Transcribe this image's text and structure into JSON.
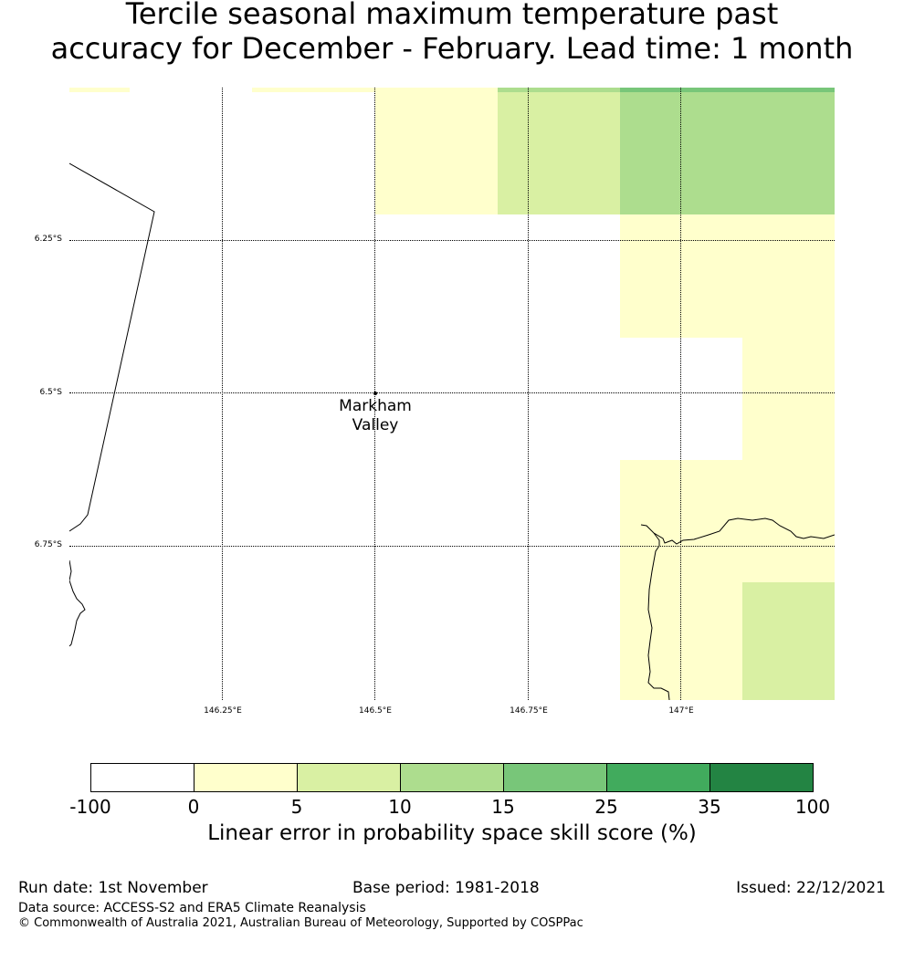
{
  "title_line1": "Tercile seasonal maximum temperature past",
  "title_line2": "accuracy for December - February. Lead time: 1 month",
  "map": {
    "lat_labels": [
      "6.25°S",
      "6.5°S",
      "6.75°S"
    ],
    "lon_labels": [
      "146.25°E",
      "146.5°E",
      "146.75°E",
      "147°E"
    ],
    "place": {
      "name_line1": "Markham",
      "name_line2": "Valley"
    }
  },
  "colorbar": {
    "colors": [
      "#ffffff",
      "#ffffcc",
      "#d9f0a3",
      "#addd8e",
      "#78c679",
      "#41ab5d",
      "#238443"
    ],
    "ticks": [
      "-100",
      "0",
      "5",
      "10",
      "15",
      "25",
      "35",
      "100"
    ],
    "label": "Linear error in probability space skill score (%)"
  },
  "footer": {
    "run_date": "Run date: 1st November",
    "base_period": "Base period: 1981-2018",
    "issued": "Issued: 22/12/2021",
    "data_source": "Data source: ACCESS-S2 and ERA5 Climate Reanalysis",
    "copyright": "© Commonwealth of Australia 2021, Australian Bureau of Meteorology, Supported by COSPPac"
  }
}
